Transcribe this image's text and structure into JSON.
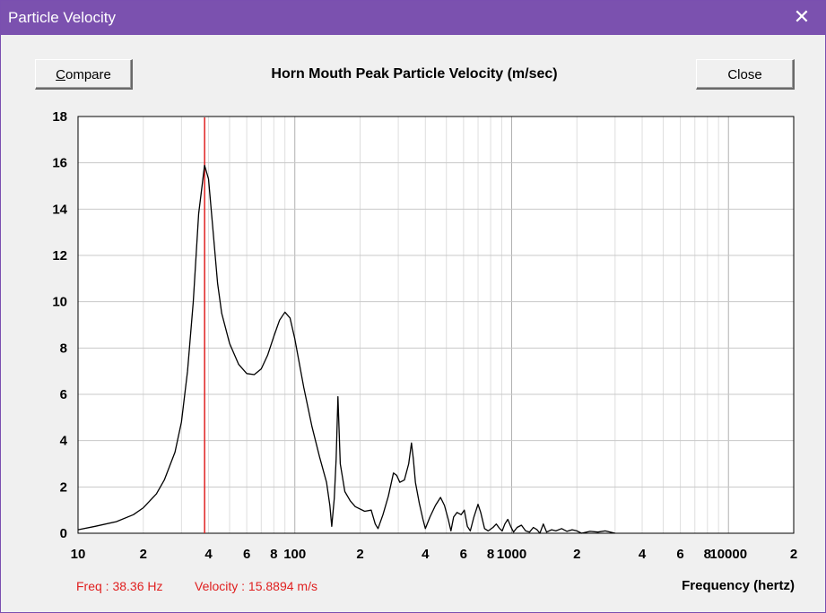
{
  "window": {
    "title": "Particle Velocity",
    "close_glyph": "✕"
  },
  "toolbar": {
    "compare_first": "C",
    "compare_rest": "ompare",
    "close_label": "Close"
  },
  "status": {
    "freq": "Freq : 38.36 Hz",
    "velocity": "Velocity : 15.8894 m/s"
  },
  "colors": {
    "titlebar": "#7b51af",
    "cursor": "#e02020",
    "curve": "#000000",
    "grid": "#c8c8c8"
  },
  "chart_data": {
    "type": "line",
    "title": "Horn Mouth Peak Particle Velocity (m/sec)",
    "xlabel": "Frequency (hertz)",
    "ylabel": "",
    "x_scale": "log",
    "xlim": [
      10,
      20000
    ],
    "ylim": [
      0,
      18
    ],
    "grid": true,
    "y_ticks": [
      "0",
      "2",
      "4",
      "6",
      "8",
      "10",
      "12",
      "14",
      "16",
      "18"
    ],
    "x_ticks": [
      {
        "v": 10,
        "t": "10"
      },
      {
        "v": 20,
        "t": "2"
      },
      {
        "v": 40,
        "t": "4"
      },
      {
        "v": 60,
        "t": "6"
      },
      {
        "v": 80,
        "t": "8"
      },
      {
        "v": 100,
        "t": "100"
      },
      {
        "v": 200,
        "t": "2"
      },
      {
        "v": 400,
        "t": "4"
      },
      {
        "v": 600,
        "t": "6"
      },
      {
        "v": 800,
        "t": "8"
      },
      {
        "v": 1000,
        "t": "1000"
      },
      {
        "v": 2000,
        "t": "2"
      },
      {
        "v": 4000,
        "t": "4"
      },
      {
        "v": 6000,
        "t": "6"
      },
      {
        "v": 8000,
        "t": "8"
      },
      {
        "v": 10000,
        "t": "10000"
      },
      {
        "v": 20000,
        "t": "2"
      }
    ],
    "cursor_x": 38.36,
    "series": [
      {
        "points": [
          [
            10,
            0.15
          ],
          [
            12,
            0.3
          ],
          [
            15,
            0.5
          ],
          [
            18,
            0.8
          ],
          [
            20,
            1.1
          ],
          [
            23,
            1.7
          ],
          [
            25,
            2.3
          ],
          [
            28,
            3.5
          ],
          [
            30,
            4.8
          ],
          [
            32,
            7.0
          ],
          [
            34,
            10.0
          ],
          [
            36,
            13.8
          ],
          [
            38.36,
            15.89
          ],
          [
            40,
            15.3
          ],
          [
            42,
            13.0
          ],
          [
            44,
            10.8
          ],
          [
            46,
            9.5
          ],
          [
            50,
            8.2
          ],
          [
            55,
            7.3
          ],
          [
            60,
            6.9
          ],
          [
            65,
            6.85
          ],
          [
            70,
            7.1
          ],
          [
            75,
            7.7
          ],
          [
            80,
            8.5
          ],
          [
            85,
            9.2
          ],
          [
            90,
            9.55
          ],
          [
            95,
            9.3
          ],
          [
            100,
            8.4
          ],
          [
            110,
            6.3
          ],
          [
            120,
            4.6
          ],
          [
            130,
            3.3
          ],
          [
            140,
            2.2
          ],
          [
            145,
            1.2
          ],
          [
            148,
            0.3
          ],
          [
            152,
            1.5
          ],
          [
            155,
            3.2
          ],
          [
            158,
            5.9
          ],
          [
            162,
            3.0
          ],
          [
            170,
            1.8
          ],
          [
            180,
            1.4
          ],
          [
            190,
            1.15
          ],
          [
            210,
            0.95
          ],
          [
            225,
            1.0
          ],
          [
            235,
            0.4
          ],
          [
            242,
            0.2
          ],
          [
            255,
            0.8
          ],
          [
            270,
            1.6
          ],
          [
            285,
            2.6
          ],
          [
            295,
            2.5
          ],
          [
            305,
            2.2
          ],
          [
            320,
            2.3
          ],
          [
            335,
            3.0
          ],
          [
            345,
            3.9
          ],
          [
            352,
            3.2
          ],
          [
            360,
            2.2
          ],
          [
            375,
            1.3
          ],
          [
            390,
            0.6
          ],
          [
            400,
            0.2
          ],
          [
            420,
            0.7
          ],
          [
            445,
            1.2
          ],
          [
            470,
            1.55
          ],
          [
            490,
            1.2
          ],
          [
            510,
            0.6
          ],
          [
            525,
            0.1
          ],
          [
            540,
            0.7
          ],
          [
            560,
            0.9
          ],
          [
            585,
            0.8
          ],
          [
            605,
            1.0
          ],
          [
            625,
            0.3
          ],
          [
            645,
            0.1
          ],
          [
            670,
            0.7
          ],
          [
            700,
            1.25
          ],
          [
            720,
            0.9
          ],
          [
            750,
            0.2
          ],
          [
            780,
            0.1
          ],
          [
            820,
            0.25
          ],
          [
            850,
            0.4
          ],
          [
            880,
            0.2
          ],
          [
            905,
            0.1
          ],
          [
            930,
            0.4
          ],
          [
            960,
            0.6
          ],
          [
            990,
            0.3
          ],
          [
            1020,
            0.05
          ],
          [
            1060,
            0.25
          ],
          [
            1110,
            0.35
          ],
          [
            1160,
            0.1
          ],
          [
            1210,
            0.05
          ],
          [
            1260,
            0.25
          ],
          [
            1310,
            0.15
          ],
          [
            1350,
            0.0
          ],
          [
            1400,
            0.4
          ],
          [
            1450,
            0.05
          ],
          [
            1530,
            0.15
          ],
          [
            1600,
            0.1
          ],
          [
            1700,
            0.2
          ],
          [
            1800,
            0.08
          ],
          [
            1900,
            0.15
          ],
          [
            2000,
            0.1
          ],
          [
            2100,
            0.0
          ],
          [
            2300,
            0.08
          ],
          [
            2500,
            0.05
          ],
          [
            2700,
            0.1
          ],
          [
            3000,
            0.0
          ]
        ]
      }
    ]
  }
}
